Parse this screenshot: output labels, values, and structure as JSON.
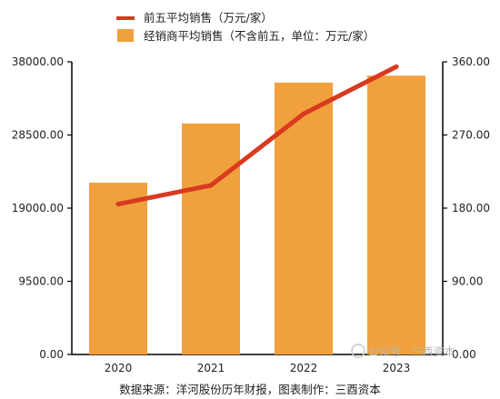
{
  "chart_data": {
    "type": "bar",
    "categories": [
      "2020",
      "2021",
      "2022",
      "2023"
    ],
    "series": [
      {
        "name": "经销商平均销售（不含前五，单位：万元/家）",
        "kind": "bar",
        "axis": "left",
        "values": [
          22300,
          30000,
          35300,
          36200
        ],
        "color": "#F0A03C"
      },
      {
        "name": "前五平均销售（万元/家）",
        "kind": "line",
        "axis": "right",
        "values": [
          185,
          208,
          296,
          354
        ],
        "color": "#D93A1F"
      }
    ],
    "left_axis": {
      "ylim": [
        0,
        38000
      ],
      "ticks": [
        "0.00",
        "9500.00",
        "19000.00",
        "28500.00",
        "38000.00"
      ]
    },
    "right_axis": {
      "ylim": [
        0,
        360
      ],
      "ticks": [
        "0.00",
        "90.00",
        "180.00",
        "270.00",
        "360.00"
      ]
    },
    "legend": {
      "placement": "top-center"
    },
    "grid": false,
    "source": "数据来源：洋河股份历年财报，图表制作：三酉资本",
    "watermark": "公众号 · 三酉资本"
  }
}
